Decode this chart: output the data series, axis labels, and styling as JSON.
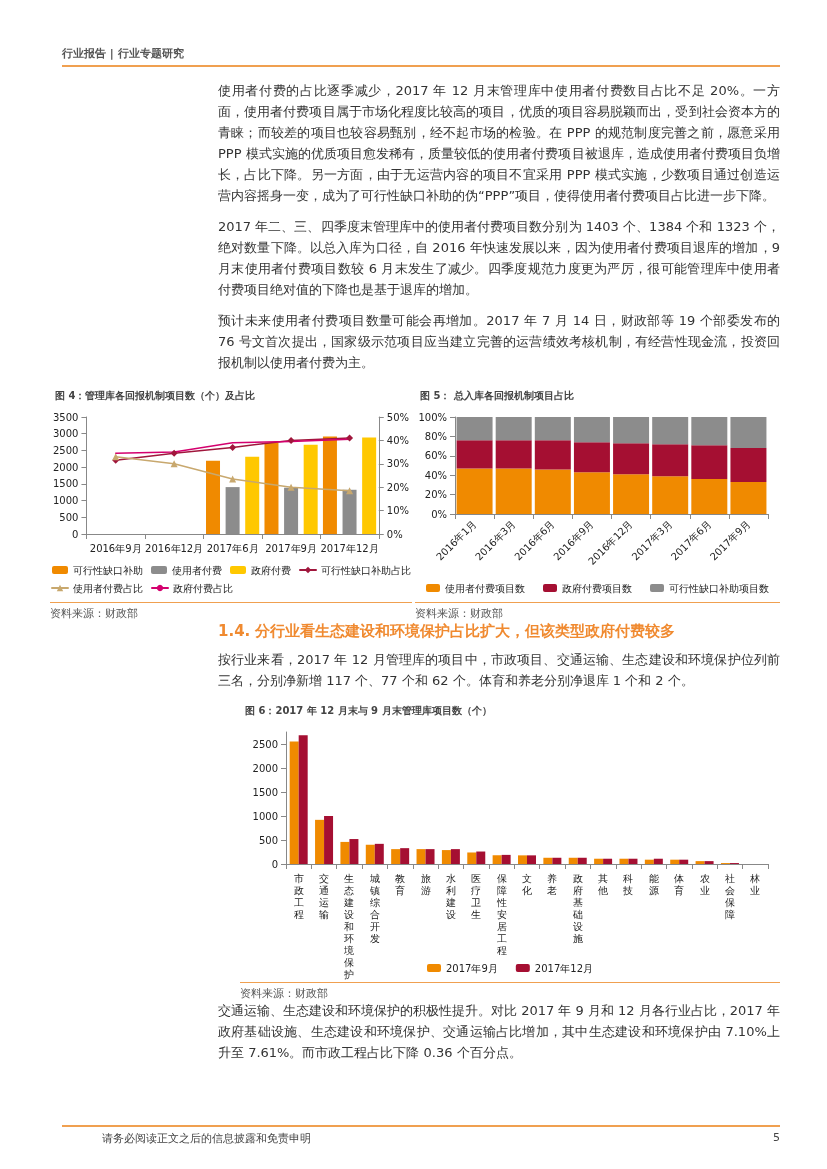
{
  "chart_data": [
    {
      "type": "bar",
      "title": "图 4：管理库各回报机制项目数（个）及占比",
      "annotations": [
        "行业报告 | 行业专题研究",
        "使用者付费的占比逐季减少，2017 年 12 月末管理库中使用者付费数目占比不足 20%。一方面，使用者付费项目属于市场化程度比较高的项目，优质的项目容易脱颖而出，受到社会资本方的青睐；而较差的项目也较容易甄别，经不起市场的检验。在 PPP 的规范制度完善之前，愿意采用 PPP 模式实施的优质项目愈发稀有，质量较低的使用者付费项目被退库，造成使用者付费项目负增长，占比下降。另一方面，由于无运营内容的项目不宜采用 PPP 模式实施，少数项目通过创造运营内容摇身一变，成为了可行性缺口补助的伪“PPP”项目，使得使用者付费项目占比进一步下降。",
        "2017 年二、三、四季度末管理库中的使用者付费项目数分别为 1403 个、1384 个和 1323 个，绝对数量下降。以总入库为口径，自 2016 年快速发展以来，因为使用者付费项目退库的增加，9 月末使用者付费项目数较 6 月末发生了减少。四季度规范力度更为严厉，很可能管理库中使用者付费项目绝对值的下降也是基于退库的增加。",
        "预计未来使用者付费项目数量可能会再增加。2017 年 7 月 14 日，财政部等 19 个部委发布的 76 号文首次提出，国家级示范项目应当建立完善的运营绩效考核机制，有经营性现金流，投资回报机制以使用者付费为主。",
        "资料来源：财政部"
      ],
      "categories": [
        "2016年9月",
        "2016年12月",
        "2017年6月",
        "2017年9月",
        "2017年12月"
      ],
      "ylim": [
        0,
        3500
      ],
      "yticks": [
        0,
        500,
        1000,
        1500,
        2000,
        2500,
        3000,
        3500
      ],
      "y2lim": [
        0,
        50
      ],
      "y2ticks": [
        {
          "value": 0,
          "label": "0%"
        },
        {
          "value": 10,
          "label": "10%"
        },
        {
          "value": 20,
          "label": "20%"
        },
        {
          "value": 30,
          "label": "30%"
        },
        {
          "value": 40,
          "label": "40%"
        },
        {
          "value": 50,
          "label": "50%"
        }
      ],
      "legend": "bottom",
      "series": [
        {
          "name": "可行性缺口补助",
          "color": "#f08a00",
          "values": [
            null,
            null,
            2190,
            2730,
            2920
          ]
        },
        {
          "name": "使用者付费",
          "color": "#8c8c8c",
          "values": [
            null,
            null,
            1403,
            1384,
            1323
          ]
        },
        {
          "name": "政府付费",
          "color": "#ffc800",
          "values": [
            null,
            null,
            2310,
            2670,
            2890
          ]
        },
        {
          "name": "可行性缺口补助占比",
          "type": "line",
          "axis": "y2",
          "marker": "diamond",
          "color": "#a0163c",
          "values": [
            31.5,
            34.5,
            37,
            40,
            41
          ]
        },
        {
          "name": "使用者付费占比",
          "type": "line",
          "axis": "y2",
          "marker": "triangle",
          "color": "#c8a86e",
          "values": [
            33,
            30,
            23.5,
            20,
            18.5
          ]
        },
        {
          "name": "政府付费占比",
          "type": "line",
          "axis": "y2",
          "marker": "none",
          "color": "#d4006e",
          "values": [
            34.5,
            35,
            39,
            39.5,
            40.5
          ]
        }
      ]
    },
    {
      "type": "bar",
      "title": "图 5： 总入库各回报机制项目占比",
      "stacked": true,
      "annotations": [
        "资料来源：财政部",
        "1.4. 分行业看生态建设和环境保护占比扩大，但该类型政府付费较多",
        "按行业来看，2017 年 12 月管理库的项目中，市政项目、交通运输、生态建设和环境保护位列前三名，分别净新增 117 个、77 个和 62 个。体育和养老分别净退库 1 个和 2 个。"
      ],
      "categories": [
        "2016年1月",
        "2016年3月",
        "2016年6月",
        "2016年9月",
        "2016年12月",
        "2017年3月",
        "2017年6月",
        "2017年9月"
      ],
      "ylim": [
        0,
        100
      ],
      "yticks": [
        {
          "value": 0,
          "label": "0%"
        },
        {
          "value": 20,
          "label": "20%"
        },
        {
          "value": 40,
          "label": "40%"
        },
        {
          "value": 60,
          "label": "60%"
        },
        {
          "value": 80,
          "label": "80%"
        },
        {
          "value": 100,
          "label": "100%"
        }
      ],
      "legend": "bottom",
      "series": [
        {
          "name": "使用者付费项目数",
          "color": "#f08a00",
          "values": [
            47,
            47,
            46,
            43,
            41,
            39,
            36,
            33
          ]
        },
        {
          "name": "政府付费项目数",
          "color": "#a50f32",
          "values": [
            29,
            29,
            30,
            31,
            32,
            33,
            35,
            35
          ]
        },
        {
          "name": "可行性缺口补助项目数",
          "color": "#8c8c8c",
          "values": [
            24,
            24,
            24,
            26,
            27,
            28,
            29,
            32
          ]
        }
      ]
    },
    {
      "type": "bar",
      "title": "图 6：2017 年 12 月末与 9 月末管理库项目数（个）",
      "annotations": [
        "资料来源：财政部",
        "交通运输、生态建设和环境保护的积极性提升。对比 2017 年 9 月和 12 月各行业占比，2017 年政府基础设施、生态建设和环境保护、交通运输占比增加，其中生态建设和环境保护由 7.10%上升至 7.61%。而市政工程占比下降 0.36 个百分点。",
        "请务必阅读正文之后的信息披露和免责申明",
        "5"
      ],
      "categories": [
        "市政工程",
        "交通运输",
        "生态建设和环境保护",
        "城镇综合开发",
        "教育",
        "旅游",
        "水利建设",
        "医疗卫生",
        "保障性安居工程",
        "文化",
        "养老",
        "政府基础设施",
        "其他",
        "科技",
        "能源",
        "体育",
        "农业",
        "社会保障",
        "林业"
      ],
      "ylim": [
        0,
        2750
      ],
      "yticks": [
        0,
        500,
        1000,
        1500,
        2000,
        2500
      ],
      "legend": "bottom",
      "series": [
        {
          "name": "2017年9月",
          "color": "#f08a00",
          "values": [
            2550,
            920,
            460,
            400,
            310,
            310,
            290,
            240,
            180,
            180,
            130,
            130,
            110,
            110,
            90,
            90,
            60,
            20,
            null
          ]
        },
        {
          "name": "2017年12月",
          "color": "#a50f32",
          "values": [
            2680,
            1000,
            520,
            420,
            330,
            310,
            310,
            260,
            190,
            180,
            130,
            130,
            110,
            110,
            110,
            90,
            60,
            20,
            null
          ]
        }
      ]
    }
  ]
}
